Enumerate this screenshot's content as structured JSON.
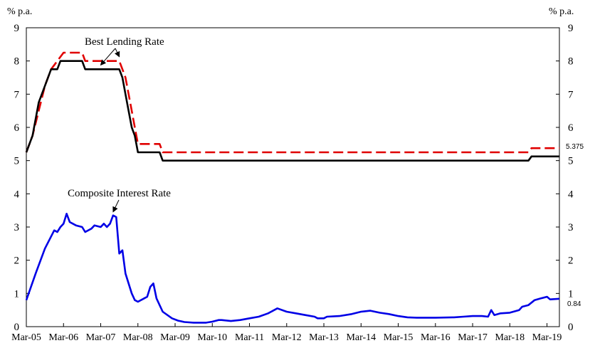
{
  "chart_data": {
    "type": "line",
    "y_unit_left": "% p.a.",
    "y_unit_right": "% p.a.",
    "ylim": [
      0,
      9
    ],
    "yticks": [
      "0",
      "1",
      "2",
      "3",
      "4",
      "5",
      "6",
      "7",
      "8",
      "9"
    ],
    "xlim": [
      "2005-03",
      "2019-07"
    ],
    "xticks": [
      {
        "date": "2005-03",
        "label": "Mar-05"
      },
      {
        "date": "2006-03",
        "label": "Mar-06"
      },
      {
        "date": "2007-03",
        "label": "Mar-07"
      },
      {
        "date": "2008-03",
        "label": "Mar-08"
      },
      {
        "date": "2009-03",
        "label": "Mar-09"
      },
      {
        "date": "2010-03",
        "label": "Mar-10"
      },
      {
        "date": "2011-03",
        "label": "Mar-11"
      },
      {
        "date": "2012-03",
        "label": "Mar-12"
      },
      {
        "date": "2013-03",
        "label": "Mar-13"
      },
      {
        "date": "2014-03",
        "label": "Mar-14"
      },
      {
        "date": "2015-03",
        "label": "Mar-15"
      },
      {
        "date": "2016-03",
        "label": "Mar-16"
      },
      {
        "date": "2017-03",
        "label": "Mar-17"
      },
      {
        "date": "2018-03",
        "label": "Mar-18"
      },
      {
        "date": "2019-03",
        "label": "Mar-19"
      }
    ],
    "grid": false,
    "series": [
      {
        "color": "#e00000",
        "dash": "dashed",
        "points": [
          [
            "2005-03",
            5.25
          ],
          [
            "2005-05",
            5.75
          ],
          [
            "2005-07",
            6.5
          ],
          [
            "2005-09",
            7.25
          ],
          [
            "2005-11",
            7.75
          ],
          [
            "2006-01",
            8.0
          ],
          [
            "2006-03",
            8.25
          ],
          [
            "2006-09",
            8.25
          ],
          [
            "2006-10",
            8.0
          ],
          [
            "2007-06",
            8.0
          ],
          [
            "2007-09",
            8.0
          ],
          [
            "2007-10",
            7.75
          ],
          [
            "2007-11",
            7.5
          ],
          [
            "2007-12",
            7.0
          ],
          [
            "2008-01",
            6.5
          ],
          [
            "2008-02",
            6.0
          ],
          [
            "2008-03",
            5.5
          ],
          [
            "2008-10",
            5.5
          ],
          [
            "2008-11",
            5.25
          ],
          [
            "2018-09",
            5.25
          ],
          [
            "2018-10",
            5.375
          ],
          [
            "2019-07",
            5.375
          ]
        ]
      },
      {
        "color": "#000000",
        "dash": "solid",
        "points": [
          [
            "2005-03",
            5.25
          ],
          [
            "2005-05",
            5.75
          ],
          [
            "2005-07",
            6.75
          ],
          [
            "2005-09",
            7.25
          ],
          [
            "2005-11",
            7.75
          ],
          [
            "2006-01",
            7.75
          ],
          [
            "2006-02",
            8.0
          ],
          [
            "2006-09",
            8.0
          ],
          [
            "2006-10",
            7.75
          ],
          [
            "2007-09",
            7.75
          ],
          [
            "2007-10",
            7.5
          ],
          [
            "2007-11",
            7.0
          ],
          [
            "2007-12",
            6.5
          ],
          [
            "2008-01",
            6.0
          ],
          [
            "2008-02",
            5.75
          ],
          [
            "2008-03",
            5.25
          ],
          [
            "2008-10",
            5.25
          ],
          [
            "2008-11",
            5.0
          ],
          [
            "2018-09",
            5.0
          ],
          [
            "2018-10",
            5.125
          ],
          [
            "2019-07",
            5.125
          ]
        ]
      },
      {
        "color": "#0000e6",
        "dash": "solid",
        "points": [
          [
            "2005-03",
            0.8
          ],
          [
            "2005-06",
            1.6
          ],
          [
            "2005-09",
            2.35
          ],
          [
            "2005-12",
            2.9
          ],
          [
            "2006-01",
            2.85
          ],
          [
            "2006-02",
            3.0
          ],
          [
            "2006-03",
            3.1
          ],
          [
            "2006-04",
            3.4
          ],
          [
            "2006-05",
            3.15
          ],
          [
            "2006-07",
            3.05
          ],
          [
            "2006-09",
            3.0
          ],
          [
            "2006-10",
            2.85
          ],
          [
            "2006-12",
            2.95
          ],
          [
            "2007-01",
            3.05
          ],
          [
            "2007-03",
            3.0
          ],
          [
            "2007-04",
            3.1
          ],
          [
            "2007-05",
            3.0
          ],
          [
            "2007-06",
            3.1
          ],
          [
            "2007-07",
            3.35
          ],
          [
            "2007-08",
            3.3
          ],
          [
            "2007-09",
            2.2
          ],
          [
            "2007-10",
            2.3
          ],
          [
            "2007-11",
            1.6
          ],
          [
            "2008-01",
            1.0
          ],
          [
            "2008-02",
            0.8
          ],
          [
            "2008-03",
            0.75
          ],
          [
            "2008-05",
            0.85
          ],
          [
            "2008-06",
            0.9
          ],
          [
            "2008-07",
            1.2
          ],
          [
            "2008-08",
            1.3
          ],
          [
            "2008-09",
            0.85
          ],
          [
            "2008-11",
            0.45
          ],
          [
            "2009-02",
            0.25
          ],
          [
            "2009-04",
            0.18
          ],
          [
            "2009-06",
            0.14
          ],
          [
            "2009-09",
            0.12
          ],
          [
            "2010-01",
            0.12
          ],
          [
            "2010-03",
            0.15
          ],
          [
            "2010-05",
            0.2
          ],
          [
            "2010-06",
            0.2
          ],
          [
            "2010-09",
            0.17
          ],
          [
            "2010-12",
            0.2
          ],
          [
            "2011-03",
            0.25
          ],
          [
            "2011-06",
            0.3
          ],
          [
            "2011-09",
            0.4
          ],
          [
            "2011-12",
            0.55
          ],
          [
            "2012-03",
            0.45
          ],
          [
            "2012-06",
            0.4
          ],
          [
            "2012-09",
            0.35
          ],
          [
            "2012-12",
            0.3
          ],
          [
            "2013-01",
            0.25
          ],
          [
            "2013-03",
            0.25
          ],
          [
            "2013-04",
            0.3
          ],
          [
            "2013-08",
            0.32
          ],
          [
            "2013-12",
            0.38
          ],
          [
            "2014-03",
            0.45
          ],
          [
            "2014-06",
            0.48
          ],
          [
            "2014-09",
            0.42
          ],
          [
            "2014-12",
            0.38
          ],
          [
            "2015-03",
            0.32
          ],
          [
            "2015-06",
            0.28
          ],
          [
            "2015-09",
            0.27
          ],
          [
            "2016-03",
            0.27
          ],
          [
            "2016-09",
            0.28
          ],
          [
            "2016-12",
            0.3
          ],
          [
            "2017-03",
            0.32
          ],
          [
            "2017-06",
            0.32
          ],
          [
            "2017-08",
            0.3
          ],
          [
            "2017-09",
            0.5
          ],
          [
            "2017-10",
            0.35
          ],
          [
            "2017-12",
            0.4
          ],
          [
            "2018-03",
            0.42
          ],
          [
            "2018-06",
            0.5
          ],
          [
            "2018-07",
            0.6
          ],
          [
            "2018-09",
            0.65
          ],
          [
            "2018-11",
            0.8
          ],
          [
            "2019-01",
            0.85
          ],
          [
            "2019-03",
            0.9
          ],
          [
            "2019-04",
            0.82
          ],
          [
            "2019-07",
            0.84
          ]
        ]
      }
    ],
    "annotations": {
      "best_lending": {
        "text": "Best Lending Rate",
        "arrow_dates": [
          "2007-03",
          "2007-09"
        ],
        "arrow_values": [
          7.75,
          8.0
        ]
      },
      "composite": {
        "text": "Composite Interest Rate",
        "arrow_date": "2007-07",
        "arrow_value": 3.35
      },
      "end_value_red": {
        "text": "5.375",
        "value": 5.375
      },
      "end_value_blue": {
        "text": "0.84",
        "value": 0.84
      }
    }
  }
}
